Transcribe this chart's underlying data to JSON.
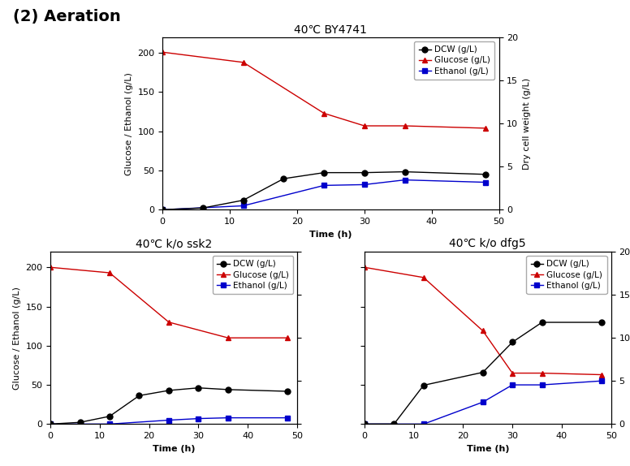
{
  "title_main": "(2) Aeration",
  "plots": [
    {
      "title": "40℃ BY4741",
      "time_dcw": [
        0,
        6,
        12,
        18,
        24,
        30,
        36,
        48
      ],
      "dcw": [
        0,
        0.2,
        1.1,
        3.6,
        4.3,
        4.3,
        4.4,
        4.1
      ],
      "time_glucose": [
        0,
        12,
        24,
        30,
        36,
        48
      ],
      "glucose": [
        201,
        188,
        123,
        107,
        107,
        104
      ],
      "time_ethanol": [
        0,
        12,
        24,
        30,
        36,
        48
      ],
      "ethanol": [
        0,
        5,
        31,
        32,
        38,
        35
      ]
    },
    {
      "title": "40℃ k/o ssk2",
      "time_dcw": [
        0,
        6,
        12,
        18,
        24,
        30,
        36,
        48
      ],
      "dcw": [
        0,
        0.2,
        0.9,
        3.3,
        3.9,
        4.2,
        4.0,
        3.8
      ],
      "time_glucose": [
        0,
        12,
        24,
        36,
        48
      ],
      "glucose": [
        200,
        193,
        130,
        110,
        110
      ],
      "time_ethanol": [
        0,
        12,
        24,
        30,
        36,
        48
      ],
      "ethanol": [
        0,
        0,
        5,
        7,
        8,
        8
      ]
    },
    {
      "title": "40℃ k/o dfg5",
      "time_dcw": [
        0,
        6,
        12,
        24,
        30,
        36,
        48
      ],
      "dcw": [
        0,
        0,
        4.5,
        6.0,
        9.5,
        11.8,
        11.8
      ],
      "time_glucose": [
        0,
        12,
        24,
        30,
        36,
        48
      ],
      "glucose": [
        200,
        187,
        119,
        65,
        65,
        63
      ],
      "time_ethanol": [
        0,
        12,
        24,
        30,
        36,
        48
      ],
      "ethanol": [
        0,
        0,
        28,
        50,
        50,
        55
      ]
    }
  ],
  "dcw_color": "#000000",
  "glucose_color": "#cc0000",
  "ethanol_color": "#0000cc",
  "ylabel_left": "Glucose / Ethanol (g/L)",
  "ylabel_right": "Dry cell weight (g/L)",
  "xlabel": "Time (h)",
  "ylim_left": [
    0,
    220
  ],
  "ylim_right": [
    0,
    20
  ],
  "yticks_left": [
    0,
    50,
    100,
    150,
    200
  ],
  "yticks_right": [
    0,
    5,
    10,
    15,
    20
  ],
  "xlim": [
    0,
    50
  ],
  "xticks": [
    0,
    10,
    20,
    30,
    40,
    50
  ],
  "legend_labels": [
    "DCW (g/L)",
    "Glucose (g/L)",
    "Ethanol (g/L)"
  ],
  "fontsize_title": 10,
  "fontsize_label": 8,
  "fontsize_tick": 8,
  "fontsize_legend": 7.5,
  "fontsize_maintitle": 14
}
